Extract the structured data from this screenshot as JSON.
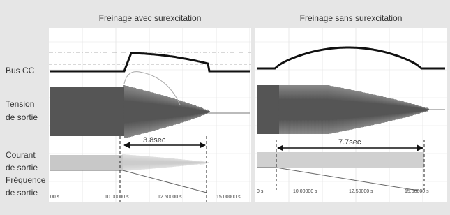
{
  "panels": [
    {
      "title": "Freinage avec surexcitation",
      "duration": "3.8sec",
      "time_labels": [
        "00 s",
        "10.00000 s",
        "12.50000 s",
        "15.00000 s"
      ]
    },
    {
      "title": "Freinage sans surexcitation",
      "duration": "7.7sec",
      "time_labels": [
        "0 s",
        "10.00000 s",
        "12.50000 s",
        "15.00000 s"
      ]
    }
  ],
  "trace_labels": [
    {
      "lines": [
        "Bus CC"
      ]
    },
    {
      "lines": [
        "Tension",
        "de sortie"
      ]
    },
    {
      "lines": [
        "Courant",
        "de sortie"
      ]
    },
    {
      "lines": [
        "Fréquence",
        "de sortie"
      ]
    }
  ]
}
